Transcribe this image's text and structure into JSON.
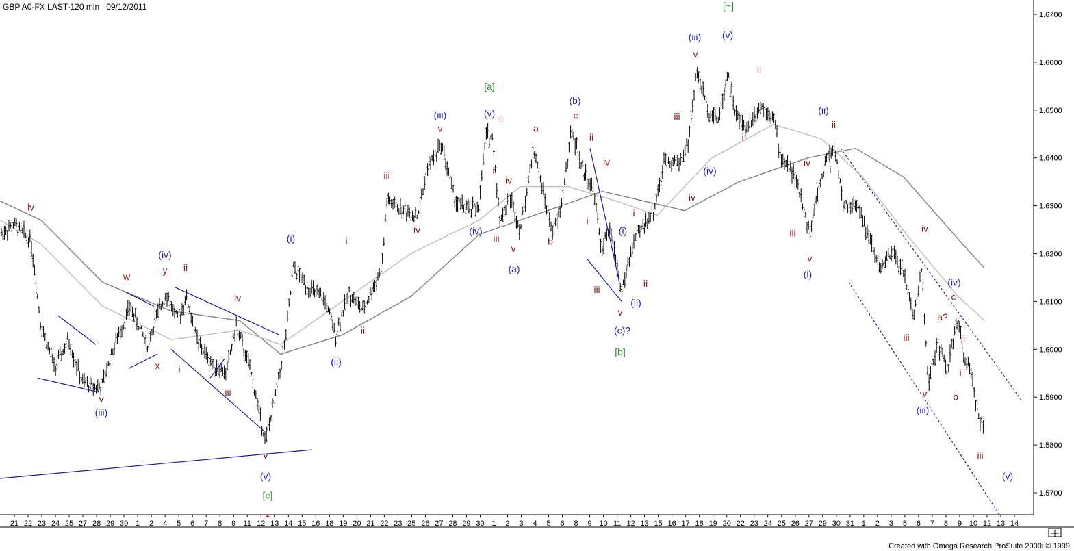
{
  "header": {
    "symbol": "GBP A0-FX LAST-120 min",
    "date": "09/12/2011"
  },
  "footer": "Created with Omega Research ProSuite 2000i © 1999",
  "colors": {
    "price_bars": "#000000",
    "ma_dark": "#808080",
    "ma_light": "#bdbdbd",
    "wave_blue": "#2020c0",
    "wave_red": "#8b1a1a",
    "wave_green": "#1f8a1f",
    "trendline": "#1a1a9a"
  },
  "chart_data": {
    "type": "ohlc",
    "ylim": [
      1.565,
      1.672
    ],
    "y_ticks": [
      "1.6700",
      "1.6600",
      "1.6500",
      "1.6400",
      "1.6300",
      "1.6200",
      "1.6100",
      "1.6000",
      "1.5900",
      "1.5800",
      "1.5700"
    ],
    "x_ticks": [
      "21",
      "22",
      "23",
      "24",
      "25",
      "27",
      "28",
      "29",
      "30",
      "1",
      "2",
      "4",
      "5",
      "6",
      "7",
      "8",
      "9",
      "11",
      "12",
      "13",
      "14",
      "15",
      "16",
      "18",
      "19",
      "20",
      "21",
      "22",
      "23",
      "25",
      "26",
      "27",
      "28",
      "29",
      "30",
      "1",
      "2",
      "3",
      "4",
      "5",
      "6",
      "8",
      "9",
      "10",
      "11",
      "12",
      "13",
      "15",
      "16",
      "17",
      "18",
      "19",
      "20",
      "22",
      "23",
      "24",
      "25",
      "26",
      "27",
      "29",
      "30",
      "31",
      "1",
      "2",
      "3",
      "5",
      "6",
      "7",
      "8",
      "9",
      "10",
      "12",
      "13",
      "14"
    ],
    "price_path": [
      [
        0,
        1.624
      ],
      [
        20,
        1.626
      ],
      [
        45,
        1.623
      ],
      [
        60,
        1.605
      ],
      [
        80,
        1.596
      ],
      [
        100,
        1.602
      ],
      [
        120,
        1.593
      ],
      [
        148,
        1.592
      ],
      [
        165,
        1.6
      ],
      [
        190,
        1.609
      ],
      [
        215,
        1.601
      ],
      [
        242,
        1.612
      ],
      [
        260,
        1.606
      ],
      [
        272,
        1.611
      ],
      [
        290,
        1.601
      ],
      [
        310,
        1.597
      ],
      [
        330,
        1.595
      ],
      [
        345,
        1.605
      ],
      [
        365,
        1.596
      ],
      [
        388,
        1.581
      ],
      [
        402,
        1.59
      ],
      [
        418,
        1.603
      ],
      [
        428,
        1.617
      ],
      [
        450,
        1.613
      ],
      [
        475,
        1.61
      ],
      [
        490,
        1.603
      ],
      [
        510,
        1.612
      ],
      [
        530,
        1.608
      ],
      [
        558,
        1.617
      ],
      [
        565,
        1.631
      ],
      [
        590,
        1.629
      ],
      [
        610,
        1.628
      ],
      [
        625,
        1.638
      ],
      [
        645,
        1.643
      ],
      [
        665,
        1.631
      ],
      [
        685,
        1.629
      ],
      [
        700,
        1.63
      ],
      [
        710,
        1.645
      ],
      [
        720,
        1.644
      ],
      [
        730,
        1.627
      ],
      [
        745,
        1.632
      ],
      [
        760,
        1.625
      ],
      [
        780,
        1.642
      ],
      [
        795,
        1.632
      ],
      [
        808,
        1.624
      ],
      [
        820,
        1.63
      ],
      [
        835,
        1.646
      ],
      [
        850,
        1.638
      ],
      [
        868,
        1.633
      ],
      [
        878,
        1.621
      ],
      [
        892,
        1.625
      ],
      [
        908,
        1.612
      ],
      [
        925,
        1.622
      ],
      [
        940,
        1.626
      ],
      [
        955,
        1.629
      ],
      [
        972,
        1.64
      ],
      [
        992,
        1.639
      ],
      [
        1005,
        1.643
      ],
      [
        1018,
        1.658
      ],
      [
        1035,
        1.65
      ],
      [
        1050,
        1.648
      ],
      [
        1063,
        1.658
      ],
      [
        1075,
        1.649
      ],
      [
        1090,
        1.646
      ],
      [
        1110,
        1.651
      ],
      [
        1130,
        1.649
      ],
      [
        1140,
        1.64
      ],
      [
        1155,
        1.638
      ],
      [
        1170,
        1.632
      ],
      [
        1183,
        1.624
      ],
      [
        1195,
        1.633
      ],
      [
        1210,
        1.641
      ],
      [
        1220,
        1.642
      ],
      [
        1232,
        1.63
      ],
      [
        1255,
        1.63
      ],
      [
        1270,
        1.623
      ],
      [
        1285,
        1.617
      ],
      [
        1305,
        1.62
      ],
      [
        1320,
        1.616
      ],
      [
        1335,
        1.607
      ],
      [
        1347,
        1.617
      ],
      [
        1356,
        1.593
      ],
      [
        1370,
        1.601
      ],
      [
        1385,
        1.596
      ],
      [
        1398,
        1.606
      ],
      [
        1410,
        1.598
      ],
      [
        1420,
        1.594
      ],
      [
        1430,
        1.586
      ],
      [
        1438,
        1.583
      ]
    ],
    "moving_averages": [
      {
        "name": "MA (dark)",
        "points": [
          [
            0,
            1.631
          ],
          [
            60,
            1.627
          ],
          [
            150,
            1.614
          ],
          [
            250,
            1.608
          ],
          [
            350,
            1.606
          ],
          [
            410,
            1.599
          ],
          [
            500,
            1.603
          ],
          [
            600,
            1.611
          ],
          [
            700,
            1.624
          ],
          [
            800,
            1.629
          ],
          [
            880,
            1.633
          ],
          [
            940,
            1.631
          ],
          [
            1000,
            1.629
          ],
          [
            1080,
            1.635
          ],
          [
            1180,
            1.64
          ],
          [
            1250,
            1.642
          ],
          [
            1320,
            1.636
          ],
          [
            1400,
            1.623
          ],
          [
            1438,
            1.617
          ]
        ]
      },
      {
        "name": "MA (light)",
        "points": [
          [
            0,
            1.627
          ],
          [
            60,
            1.622
          ],
          [
            150,
            1.609
          ],
          [
            250,
            1.602
          ],
          [
            350,
            1.604
          ],
          [
            410,
            1.601
          ],
          [
            500,
            1.61
          ],
          [
            600,
            1.62
          ],
          [
            700,
            1.627
          ],
          [
            760,
            1.634
          ],
          [
            830,
            1.634
          ],
          [
            900,
            1.631
          ],
          [
            960,
            1.628
          ],
          [
            1040,
            1.64
          ],
          [
            1130,
            1.647
          ],
          [
            1200,
            1.644
          ],
          [
            1260,
            1.636
          ],
          [
            1330,
            1.623
          ],
          [
            1400,
            1.611
          ],
          [
            1438,
            1.606
          ]
        ]
      }
    ],
    "trendlines": [
      {
        "style": "solid",
        "from": [
          0,
          1.573
        ],
        "to": [
          456,
          1.579
        ]
      },
      {
        "style": "solid",
        "from": [
          55,
          1.594
        ],
        "to": [
          145,
          1.591
        ]
      },
      {
        "style": "solid",
        "from": [
          85,
          1.607
        ],
        "to": [
          140,
          1.601
        ]
      },
      {
        "style": "solid",
        "from": [
          188,
          1.596
        ],
        "to": [
          230,
          1.599
        ]
      },
      {
        "style": "solid",
        "from": [
          183,
          1.612
        ],
        "to": [
          225,
          1.609
        ]
      },
      {
        "style": "solid",
        "from": [
          255,
          1.613
        ],
        "to": [
          408,
          1.603
        ]
      },
      {
        "style": "solid",
        "from": [
          250,
          1.6
        ],
        "to": [
          385,
          1.583
        ]
      },
      {
        "style": "solid",
        "from": [
          307,
          1.594
        ],
        "to": [
          328,
          1.598
        ]
      },
      {
        "style": "solid",
        "from": [
          862,
          1.642
        ],
        "to": [
          905,
          1.614
        ]
      },
      {
        "style": "solid",
        "from": [
          857,
          1.619
        ],
        "to": [
          908,
          1.61
        ]
      },
      {
        "style": "dashed",
        "from": [
          1228,
          1.642
        ],
        "to": [
          1494,
          1.589
        ]
      },
      {
        "style": "dashed",
        "from": [
          1240,
          1.614
        ],
        "to": [
          1462,
          1.565
        ]
      }
    ],
    "wave_labels": [
      {
        "text": "iv",
        "x": 45,
        "y": 1.6297,
        "color": "red"
      },
      {
        "text": "(iii)",
        "x": 148,
        "y": 1.5868,
        "color": "blue"
      },
      {
        "text": "v",
        "x": 148,
        "y": 1.5897,
        "color": "red"
      },
      {
        "text": "w",
        "x": 185,
        "y": 1.6152,
        "color": "red"
      },
      {
        "text": "x",
        "x": 230,
        "y": 1.5966,
        "color": "red"
      },
      {
        "text": "y",
        "x": 241,
        "y": 1.6165,
        "color": "red"
      },
      {
        "text": "(iv)",
        "x": 241,
        "y": 1.6198,
        "color": "blue"
      },
      {
        "text": "ii",
        "x": 271,
        "y": 1.6171,
        "color": "red"
      },
      {
        "text": "i",
        "x": 262,
        "y": 1.5958,
        "color": "red"
      },
      {
        "text": "iii",
        "x": 333,
        "y": 1.591,
        "color": "red"
      },
      {
        "text": "iv",
        "x": 347,
        "y": 1.6107,
        "color": "red"
      },
      {
        "text": "v",
        "x": 388,
        "y": 1.5779,
        "color": "red"
      },
      {
        "text": "(v)",
        "x": 388,
        "y": 1.5735,
        "color": "blue"
      },
      {
        "text": "[c]",
        "x": 391,
        "y": 1.5695,
        "color": "green"
      },
      {
        "text": "(i)",
        "x": 425,
        "y": 1.6232,
        "color": "blue"
      },
      {
        "text": "(ii)",
        "x": 491,
        "y": 1.5974,
        "color": "blue"
      },
      {
        "text": "i",
        "x": 506,
        "y": 1.6227,
        "color": "red"
      },
      {
        "text": "ii",
        "x": 530,
        "y": 1.604,
        "color": "red"
      },
      {
        "text": "iii",
        "x": 565,
        "y": 1.6363,
        "color": "red"
      },
      {
        "text": "iv",
        "x": 609,
        "y": 1.625,
        "color": "red"
      },
      {
        "text": "(iii)",
        "x": 643,
        "y": 1.649,
        "color": "blue"
      },
      {
        "text": "v",
        "x": 643,
        "y": 1.6462,
        "color": "red"
      },
      {
        "text": "(iv)",
        "x": 695,
        "y": 1.6247,
        "color": "blue"
      },
      {
        "text": "[a]",
        "x": 715,
        "y": 1.655,
        "color": "green"
      },
      {
        "text": "(v)",
        "x": 715,
        "y": 1.6493,
        "color": "blue"
      },
      {
        "text": "ii",
        "x": 732,
        "y": 1.6482,
        "color": "red"
      },
      {
        "text": "i",
        "x": 721,
        "y": 1.6374,
        "color": "red"
      },
      {
        "text": "iv",
        "x": 743,
        "y": 1.6353,
        "color": "red"
      },
      {
        "text": "iii",
        "x": 725,
        "y": 1.6232,
        "color": "red"
      },
      {
        "text": "v",
        "x": 750,
        "y": 1.6211,
        "color": "red"
      },
      {
        "text": "(a)",
        "x": 751,
        "y": 1.6168,
        "color": "blue"
      },
      {
        "text": "a",
        "x": 783,
        "y": 1.6462,
        "color": "red"
      },
      {
        "text": "b",
        "x": 804,
        "y": 1.6226,
        "color": "red"
      },
      {
        "text": "(b)",
        "x": 840,
        "y": 1.652,
        "color": "blue"
      },
      {
        "text": "c",
        "x": 841,
        "y": 1.6489,
        "color": "red"
      },
      {
        "text": "ii",
        "x": 864,
        "y": 1.6443,
        "color": "red"
      },
      {
        "text": "iv",
        "x": 886,
        "y": 1.6392,
        "color": "red"
      },
      {
        "text": "i",
        "x": 858,
        "y": 1.6269,
        "color": "red"
      },
      {
        "text": "iii",
        "x": 872,
        "y": 1.6125,
        "color": "red"
      },
      {
        "text": "(i)",
        "x": 910,
        "y": 1.6248,
        "color": "blue"
      },
      {
        "text": "i",
        "x": 926,
        "y": 1.6285,
        "color": "red"
      },
      {
        "text": "v",
        "x": 906,
        "y": 1.6078,
        "color": "red"
      },
      {
        "text": "(ii)",
        "x": 929,
        "y": 1.6098,
        "color": "blue"
      },
      {
        "text": "(c)?",
        "x": 909,
        "y": 1.604,
        "color": "blue"
      },
      {
        "text": "[b]",
        "x": 906,
        "y": 1.5995,
        "color": "green"
      },
      {
        "text": "ii",
        "x": 943,
        "y": 1.6138,
        "color": "red"
      },
      {
        "text": "iii",
        "x": 989,
        "y": 1.6487,
        "color": "red"
      },
      {
        "text": "iv",
        "x": 1011,
        "y": 1.6317,
        "color": "red"
      },
      {
        "text": "(iii)",
        "x": 1015,
        "y": 1.6653,
        "color": "blue"
      },
      {
        "text": "v",
        "x": 1016,
        "y": 1.6617,
        "color": "red"
      },
      {
        "text": "(iv)",
        "x": 1037,
        "y": 1.6373,
        "color": "blue"
      },
      {
        "text": "(v)",
        "x": 1063,
        "y": 1.6657,
        "color": "blue"
      },
      {
        "text": "[~]",
        "x": 1064,
        "y": 1.6718,
        "color": "green"
      },
      {
        "text": "ii",
        "x": 1109,
        "y": 1.6585,
        "color": "red"
      },
      {
        "text": "i",
        "x": 1085,
        "y": 1.6443,
        "color": "red"
      },
      {
        "text": "(ii)",
        "x": 1203,
        "y": 1.65,
        "color": "blue"
      },
      {
        "text": "ii",
        "x": 1218,
        "y": 1.647,
        "color": "red"
      },
      {
        "text": "iv",
        "x": 1179,
        "y": 1.639,
        "color": "red"
      },
      {
        "text": "i",
        "x": 1213,
        "y": 1.6375,
        "color": "red"
      },
      {
        "text": "iii",
        "x": 1158,
        "y": 1.6243,
        "color": "red"
      },
      {
        "text": "v",
        "x": 1183,
        "y": 1.619,
        "color": "red"
      },
      {
        "text": "(i)",
        "x": 1180,
        "y": 1.6157,
        "color": "blue"
      },
      {
        "text": "iv",
        "x": 1351,
        "y": 1.6253,
        "color": "red"
      },
      {
        "text": "iii",
        "x": 1324,
        "y": 1.6025,
        "color": "red"
      },
      {
        "text": "(iv)",
        "x": 1394,
        "y": 1.614,
        "color": "blue"
      },
      {
        "text": "c",
        "x": 1393,
        "y": 1.611,
        "color": "red"
      },
      {
        "text": "a?",
        "x": 1377,
        "y": 1.6068,
        "color": "red"
      },
      {
        "text": "ii",
        "x": 1407,
        "y": 1.6022,
        "color": "red"
      },
      {
        "text": "i",
        "x": 1403,
        "y": 1.5951,
        "color": "red"
      },
      {
        "text": "b",
        "x": 1396,
        "y": 1.5901,
        "color": "red"
      },
      {
        "text": "v",
        "x": 1351,
        "y": 1.5908,
        "color": "red"
      },
      {
        "text": "(iii)",
        "x": 1348,
        "y": 1.5873,
        "color": "blue"
      },
      {
        "text": "iii",
        "x": 1432,
        "y": 1.5778,
        "color": "red"
      },
      {
        "text": "(v)",
        "x": 1472,
        "y": 1.5735,
        "color": "blue"
      }
    ]
  }
}
